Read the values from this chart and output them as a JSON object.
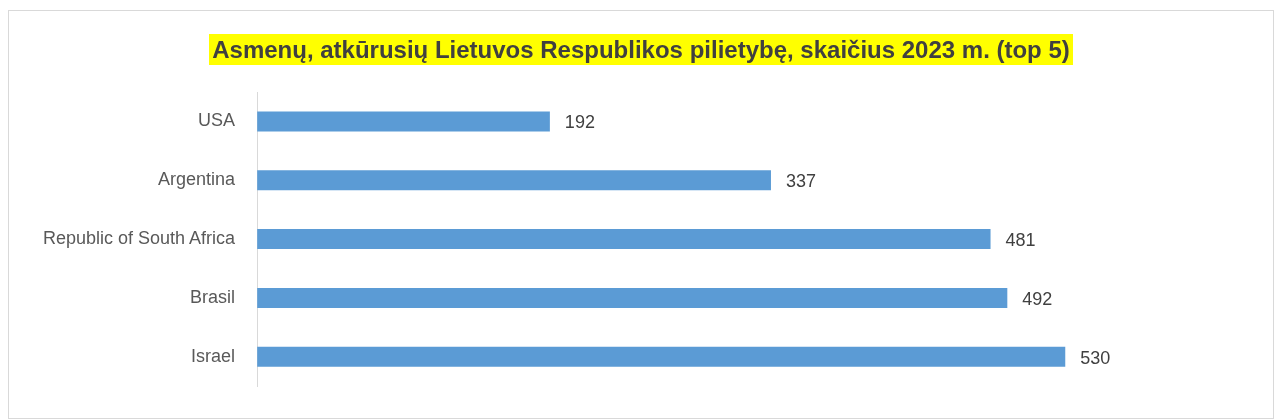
{
  "chart_data": {
    "type": "bar",
    "orientation": "horizontal",
    "title": "Asmenų, atkūrusių Lietuvos Respublikos pilietybę, skaičius 2023 m. (top 5)",
    "categories": [
      "USA",
      "Argentina",
      "Republic of South Africa",
      "Brasil",
      "Israel"
    ],
    "values": [
      192,
      337,
      481,
      492,
      530
    ],
    "color": "#5b9bd5",
    "data_labels": true,
    "legend": false,
    "tick_labels": "y"
  }
}
